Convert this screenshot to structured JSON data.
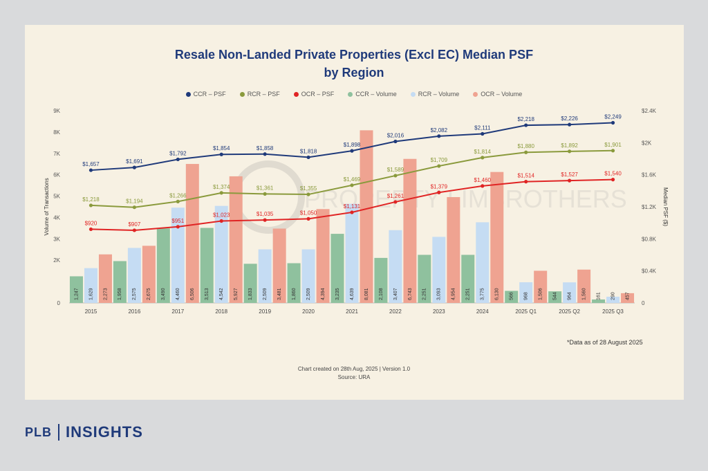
{
  "chart_data": {
    "type": "bar",
    "title_line1": "Resale Non-Landed Private Properties (Excl EC) Median PSF",
    "title_line2": "by Region",
    "categories": [
      "2015",
      "2016",
      "2017",
      "2018",
      "2019",
      "2020",
      "2021",
      "2022",
      "2023",
      "2024",
      "2025 Q1",
      "2025 Q2",
      "2025 Q3"
    ],
    "ylabel_left": "Volume of Transactions",
    "ylabel_right": "Median PSF ($)",
    "left_ticks": [
      "0",
      "2K",
      "3K",
      "4K",
      "5K",
      "6K",
      "7K",
      "8K",
      "9K"
    ],
    "right_ticks": [
      "0",
      "$0.4K",
      "$0.8K",
      "$1.2K",
      "$1.6K",
      "$2K",
      "$2.4K"
    ],
    "left_range": [
      0,
      9000
    ],
    "right_range": [
      0,
      2400
    ],
    "legend": [
      {
        "name": "CCR – PSF",
        "kind": "line",
        "color": "#1f3a7a"
      },
      {
        "name": "RCR – PSF",
        "kind": "line",
        "color": "#8a9a3c"
      },
      {
        "name": "OCR – PSF",
        "kind": "line",
        "color": "#e02424"
      },
      {
        "name": "CCR – Volume",
        "kind": "bar",
        "color": "#8fc19e"
      },
      {
        "name": "RCR – Volume",
        "kind": "bar",
        "color": "#c5dcf3"
      },
      {
        "name": "OCR – Volume",
        "kind": "bar",
        "color": "#efa391"
      }
    ],
    "volume_series": [
      {
        "name": "CCR – Volume",
        "color": "#8fc19e",
        "values": [
          1247,
          1958,
          3490,
          3513,
          1833,
          1860,
          3235,
          2108,
          2251,
          2251,
          566,
          544,
          161
        ]
      },
      {
        "name": "RCR – Volume",
        "color": "#c5dcf3",
        "values": [
          1629,
          2575,
          4460,
          4542,
          2509,
          2509,
          4639,
          3407,
          3093,
          3775,
          968,
          964,
          290
        ]
      },
      {
        "name": "OCR – Volume",
        "color": "#efa391",
        "values": [
          2273,
          2675,
          6506,
          5927,
          3481,
          4394,
          8081,
          6743,
          4954,
          6130,
          1506,
          1560,
          457
        ]
      }
    ],
    "volume_labels": [
      [
        "1,247",
        "1,629",
        "2,273"
      ],
      [
        "1,958",
        "2,575",
        "2,675"
      ],
      [
        "3,490",
        "4,460",
        "6,506"
      ],
      [
        "3,513",
        "4,542",
        "5,927"
      ],
      [
        "1,833",
        "2,509",
        "3,481"
      ],
      [
        "1,860",
        "2,509",
        "4,394"
      ],
      [
        "3,235",
        "4,639",
        "8,081"
      ],
      [
        "2,108",
        "3,407",
        "6,743"
      ],
      [
        "2,251",
        "3,093",
        "4,954"
      ],
      [
        "2,251",
        "3,775",
        "6,130"
      ],
      [
        "566",
        "968",
        "1,506"
      ],
      [
        "544",
        "964",
        "1,560"
      ],
      [
        "161",
        "290",
        "457"
      ]
    ],
    "psf_series": [
      {
        "name": "CCR – PSF",
        "color": "#1f3a7a",
        "values": [
          1657,
          1691,
          1792,
          1854,
          1858,
          1818,
          1898,
          2016,
          2082,
          2111,
          2218,
          2226,
          2249
        ],
        "labels": [
          "$1,657",
          "$1,691",
          "$1,792",
          "$1,854",
          "$1,858",
          "$1,818",
          "$1,898",
          "$2,016",
          "$2,082",
          "$2,111",
          "$2,218",
          "$2,226",
          "$2,249"
        ]
      },
      {
        "name": "RCR – PSF",
        "color": "#8a9a3c",
        "values": [
          1218,
          1194,
          1266,
          1374,
          1361,
          1355,
          1469,
          1589,
          1709,
          1814,
          1880,
          1892,
          1901
        ],
        "labels": [
          "$1,218",
          "$1,194",
          "$1,266",
          "$1,374",
          "$1,361",
          "$1,355",
          "$1,469",
          "$1,589",
          "$1,709",
          "$1,814",
          "$1,880",
          "$1,892",
          "$1,901"
        ]
      },
      {
        "name": "OCR – PSF",
        "color": "#e02424",
        "values": [
          920,
          907,
          951,
          1023,
          1035,
          1050,
          1131,
          1261,
          1379,
          1460,
          1514,
          1527,
          1540
        ],
        "labels": [
          "$920",
          "$907",
          "$951",
          "$1,023",
          "$1,035",
          "$1,050",
          "$1,131",
          "$1,261",
          "$1,379",
          "$1,460",
          "$1,514",
          "$1,527",
          "$1,540"
        ]
      }
    ],
    "watermark_text": "PROPERTY LIMBROTHERS"
  },
  "note": "*Data as of 28 August 2025",
  "footer_line1": "Chart created on 28th Aug, 2025 | Version 1.0",
  "footer_line2": "Source: URA",
  "brand": {
    "left": "PLB",
    "right": "INSIGHTS"
  }
}
